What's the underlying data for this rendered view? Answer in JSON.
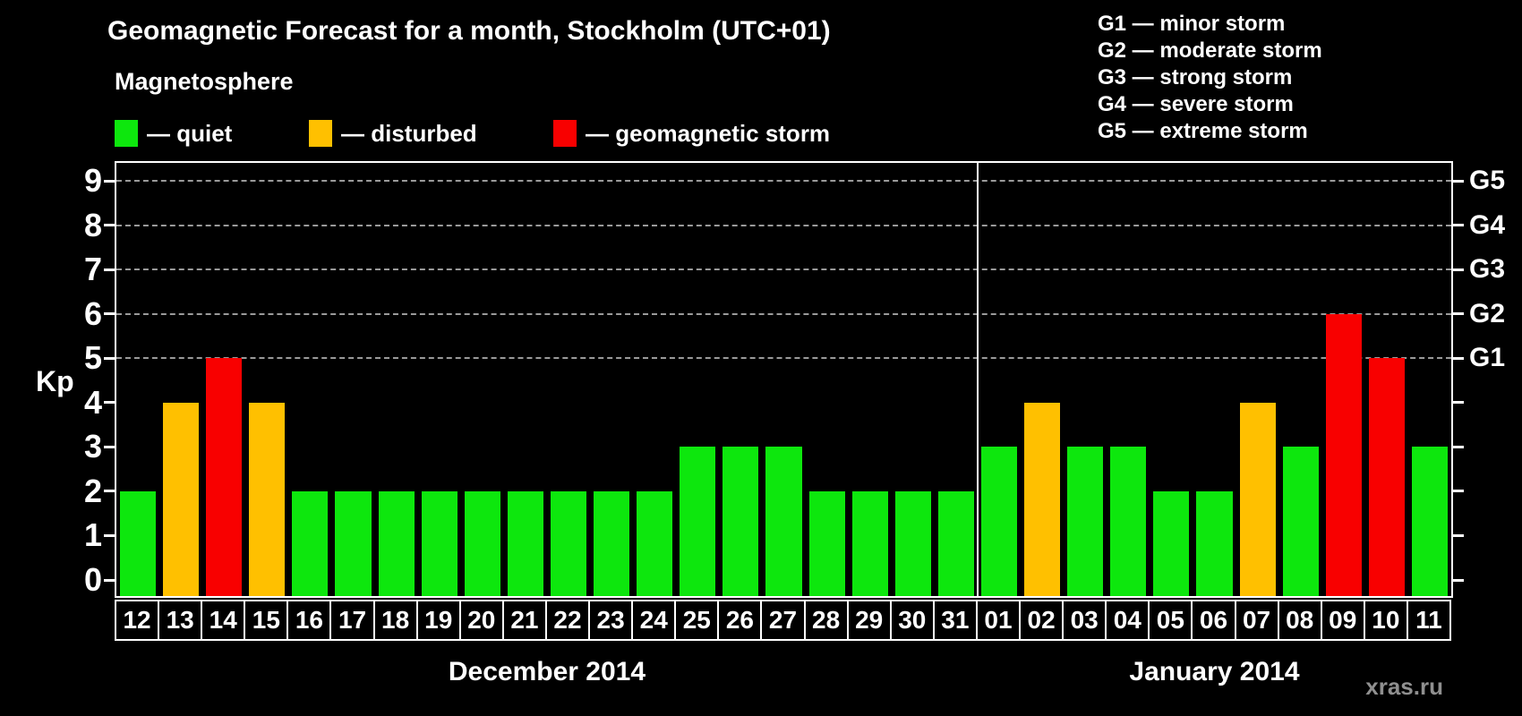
{
  "header": {
    "title": "Geomagnetic Forecast for a month, Stockholm (UTC+01)"
  },
  "legend": {
    "title": "Magnetosphere",
    "items": [
      {
        "key": "quiet",
        "label": "— quiet",
        "color": "#0de70d"
      },
      {
        "key": "disturbed",
        "label": "— disturbed",
        "color": "#ffc000"
      },
      {
        "key": "storm",
        "label": "— geomagnetic storm",
        "color": "#f80000"
      }
    ]
  },
  "g_legend": {
    "items": [
      "G1 — minor storm",
      "G2 — moderate storm",
      "G3 — strong storm",
      "G4 — severe storm",
      "G5 — extreme storm"
    ]
  },
  "watermark": "xras.ru",
  "chart_data": {
    "type": "bar",
    "title": "Geomagnetic Forecast for a month, Stockholm (UTC+01)",
    "ylabel": "Kp",
    "ylim": [
      0,
      9
    ],
    "yticks": [
      0,
      1,
      2,
      3,
      4,
      5,
      6,
      7,
      8,
      9
    ],
    "gridlines_at": [
      5,
      6,
      7,
      8,
      9
    ],
    "grid": "dashed, only at storm levels 5-9",
    "legend_position": "top",
    "right_axis_labels": [
      {
        "kp": 5,
        "label": "G1"
      },
      {
        "kp": 6,
        "label": "G2"
      },
      {
        "kp": 7,
        "label": "G3"
      },
      {
        "kp": 8,
        "label": "G4"
      },
      {
        "kp": 9,
        "label": "G5"
      }
    ],
    "months": [
      {
        "label": "December 2014",
        "span": 20
      },
      {
        "label": "January 2014",
        "span": 11
      }
    ],
    "categories": [
      "12",
      "13",
      "14",
      "15",
      "16",
      "17",
      "18",
      "19",
      "20",
      "21",
      "22",
      "23",
      "24",
      "25",
      "26",
      "27",
      "28",
      "29",
      "30",
      "31",
      "01",
      "02",
      "03",
      "04",
      "05",
      "06",
      "07",
      "08",
      "09",
      "10",
      "11"
    ],
    "values": [
      2,
      4,
      5,
      4,
      2,
      2,
      2,
      2,
      2,
      2,
      2,
      2,
      2,
      3,
      3,
      3,
      2,
      2,
      2,
      2,
      3,
      4,
      3,
      3,
      2,
      2,
      4,
      3,
      6,
      5,
      3
    ],
    "statuses": [
      "quiet",
      "disturbed",
      "storm",
      "disturbed",
      "quiet",
      "quiet",
      "quiet",
      "quiet",
      "quiet",
      "quiet",
      "quiet",
      "quiet",
      "quiet",
      "quiet",
      "quiet",
      "quiet",
      "quiet",
      "quiet",
      "quiet",
      "quiet",
      "quiet",
      "disturbed",
      "quiet",
      "quiet",
      "quiet",
      "quiet",
      "disturbed",
      "quiet",
      "storm",
      "storm",
      "quiet"
    ],
    "status_colors": {
      "quiet": "#0de70d",
      "disturbed": "#ffc000",
      "storm": "#f80000"
    }
  }
}
